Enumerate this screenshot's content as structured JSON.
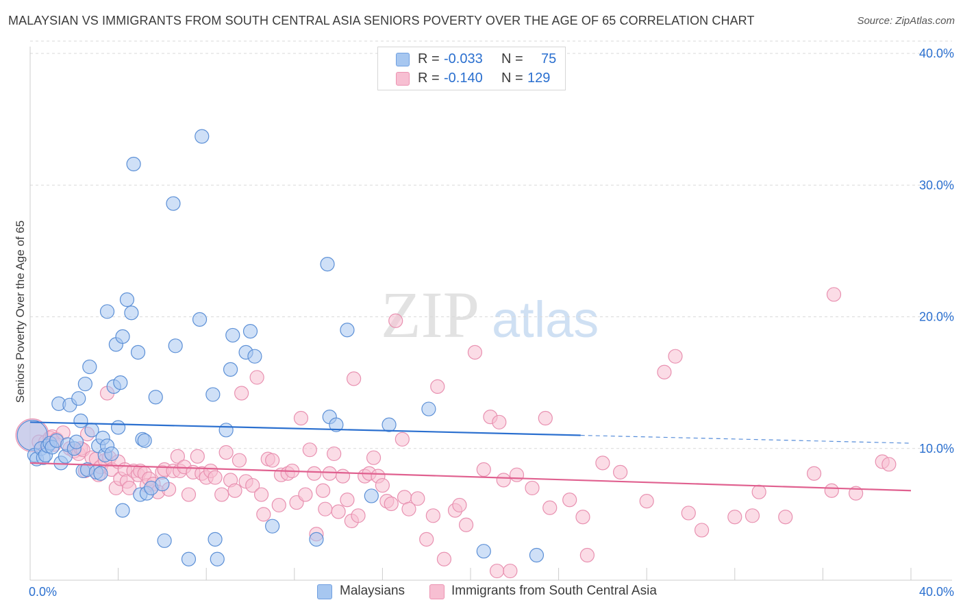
{
  "title": "MALAYSIAN VS IMMIGRANTS FROM SOUTH CENTRAL ASIA SENIORS POVERTY OVER THE AGE OF 65 CORRELATION CHART",
  "source": "Source: ZipAtlas.com",
  "watermark": {
    "zip": "ZIP",
    "atlas": "atlas"
  },
  "legend_top": {
    "rows": [
      {
        "r_label": "R =",
        "r_value": "-0.033",
        "n_label": "N =",
        "n_value": "75",
        "color": "#a7c7f0",
        "border": "#6f9fe0"
      },
      {
        "r_label": "R =",
        "r_value": "-0.140",
        "n_label": "N =",
        "n_value": "129",
        "color": "#f7bfd2",
        "border": "#ec92b1"
      }
    ]
  },
  "legend_bottom": {
    "items": [
      {
        "label": "Malaysians",
        "color": "#a7c7f0",
        "border": "#6f9fe0"
      },
      {
        "label": "Immigrants from South Central Asia",
        "color": "#f7bfd2",
        "border": "#ec92b1"
      }
    ]
  },
  "colors": {
    "blue": "#2a6fcf",
    "blue_point_fill": "#a7c7f0",
    "blue_point_stroke": "#5b8fd6",
    "pink": "#e0608f",
    "pink_point_fill": "#f7bfd2",
    "pink_point_stroke": "#e890b0",
    "grid": "#d9d9d9",
    "tick_text": "#2a6fcf"
  },
  "chart_data": {
    "type": "scatter",
    "xlabel": "",
    "ylabel": "Seniors Poverty Over the Age of 65",
    "xlim": [
      0,
      40
    ],
    "ylim": [
      0,
      40
    ],
    "x_tick_labels": [
      "0.0%",
      "40.0%"
    ],
    "y_ticks": [
      10,
      20,
      30,
      40
    ],
    "y_tick_labels": [
      "10.0%",
      "20.0%",
      "30.0%",
      "40.0%"
    ],
    "grid": true,
    "legend": "top-center",
    "series": [
      {
        "name": "Malaysians",
        "trend": {
          "x0": 0,
          "y0": 12.0,
          "x1": 25,
          "y1": 11.0,
          "dashed_to_x": 40,
          "dashed_to_y": 10.4
        },
        "points": [
          [
            0.1,
            11.0,
            22
          ],
          [
            0.2,
            9.5,
            10
          ],
          [
            0.3,
            9.2,
            10
          ],
          [
            0.5,
            10.0,
            10
          ],
          [
            0.6,
            9.3,
            10
          ],
          [
            0.7,
            9.5,
            10
          ],
          [
            0.8,
            10.2,
            10
          ],
          [
            0.9,
            10.4,
            10
          ],
          [
            1.0,
            10.1,
            10
          ],
          [
            1.2,
            10.6,
            10
          ],
          [
            1.3,
            13.4,
            10
          ],
          [
            1.4,
            8.9,
            10
          ],
          [
            1.6,
            9.4,
            10
          ],
          [
            1.7,
            10.3,
            10
          ],
          [
            1.8,
            13.3,
            10
          ],
          [
            2.0,
            10.0,
            10
          ],
          [
            2.1,
            10.5,
            10
          ],
          [
            2.2,
            13.8,
            10
          ],
          [
            2.3,
            12.1,
            10
          ],
          [
            2.4,
            8.3,
            10
          ],
          [
            2.5,
            14.9,
            10
          ],
          [
            2.6,
            8.4,
            10
          ],
          [
            2.7,
            16.2,
            10
          ],
          [
            2.8,
            11.4,
            10
          ],
          [
            3.0,
            8.2,
            10
          ],
          [
            3.1,
            10.2,
            10
          ],
          [
            3.2,
            8.1,
            10
          ],
          [
            3.3,
            10.8,
            10
          ],
          [
            3.4,
            9.5,
            10
          ],
          [
            3.5,
            10.2,
            10
          ],
          [
            3.5,
            20.4,
            10
          ],
          [
            3.7,
            9.6,
            10
          ],
          [
            3.8,
            14.7,
            10
          ],
          [
            3.9,
            17.9,
            10
          ],
          [
            4.0,
            11.6,
            10
          ],
          [
            4.1,
            15.0,
            10
          ],
          [
            4.2,
            18.5,
            10
          ],
          [
            4.2,
            5.3,
            10
          ],
          [
            4.4,
            21.3,
            10
          ],
          [
            4.6,
            20.3,
            10
          ],
          [
            4.7,
            31.6,
            10
          ],
          [
            4.9,
            17.3,
            10
          ],
          [
            5.0,
            6.5,
            10
          ],
          [
            5.1,
            10.7,
            10
          ],
          [
            5.2,
            10.6,
            10
          ],
          [
            5.3,
            6.6,
            10
          ],
          [
            5.5,
            7.0,
            10
          ],
          [
            5.7,
            13.9,
            10
          ],
          [
            6.0,
            7.3,
            10
          ],
          [
            6.1,
            3.0,
            10
          ],
          [
            6.5,
            28.6,
            10
          ],
          [
            6.6,
            17.8,
            10
          ],
          [
            7.2,
            1.6,
            10
          ],
          [
            7.7,
            19.8,
            10
          ],
          [
            7.8,
            33.7,
            10
          ],
          [
            8.3,
            14.1,
            10
          ],
          [
            8.4,
            3.1,
            10
          ],
          [
            8.5,
            1.6,
            10
          ],
          [
            8.9,
            11.4,
            10
          ],
          [
            9.1,
            16.0,
            10
          ],
          [
            9.2,
            18.6,
            10
          ],
          [
            9.8,
            17.3,
            10
          ],
          [
            10.0,
            18.9,
            10
          ],
          [
            10.2,
            17.0,
            10
          ],
          [
            11.0,
            4.1,
            10
          ],
          [
            13.0,
            3.1,
            10
          ],
          [
            13.5,
            24.0,
            10
          ],
          [
            13.6,
            12.4,
            10
          ],
          [
            13.9,
            11.8,
            10
          ],
          [
            14.4,
            19.0,
            10
          ],
          [
            15.5,
            6.4,
            10
          ],
          [
            16.3,
            11.8,
            10
          ],
          [
            18.1,
            13.0,
            10
          ],
          [
            20.6,
            2.2,
            10
          ],
          [
            23.0,
            1.9,
            10
          ]
        ]
      },
      {
        "name": "Immigrants from South Central Asia",
        "trend": {
          "x0": 0,
          "y0": 8.9,
          "x1": 40,
          "y1": 6.8
        },
        "points": [
          [
            0.1,
            11.0,
            24
          ],
          [
            0.4,
            10.5,
            10
          ],
          [
            0.7,
            10.5,
            10
          ],
          [
            0.9,
            10.8,
            10
          ],
          [
            1.0,
            10.9,
            10
          ],
          [
            1.1,
            10.3,
            10
          ],
          [
            1.2,
            10.7,
            10
          ],
          [
            1.5,
            11.2,
            10
          ],
          [
            1.8,
            10.0,
            10
          ],
          [
            2.0,
            9.8,
            10
          ],
          [
            2.2,
            9.6,
            10
          ],
          [
            2.3,
            10.0,
            10
          ],
          [
            2.4,
            9.9,
            10
          ],
          [
            2.5,
            8.3,
            10
          ],
          [
            2.6,
            11.1,
            10
          ],
          [
            2.8,
            9.3,
            10
          ],
          [
            3.0,
            9.2,
            10
          ],
          [
            3.1,
            8.0,
            10
          ],
          [
            3.2,
            8.6,
            10
          ],
          [
            3.4,
            9.1,
            10
          ],
          [
            3.5,
            14.2,
            10
          ],
          [
            3.6,
            9.3,
            10
          ],
          [
            3.7,
            8.4,
            10
          ],
          [
            3.9,
            7.0,
            10
          ],
          [
            4.0,
            9.0,
            10
          ],
          [
            4.1,
            7.7,
            10
          ],
          [
            4.3,
            8.4,
            10
          ],
          [
            4.4,
            7.5,
            10
          ],
          [
            4.5,
            7.0,
            10
          ],
          [
            4.7,
            8.3,
            10
          ],
          [
            4.9,
            8.0,
            10
          ],
          [
            5.0,
            8.3,
            10
          ],
          [
            5.2,
            8.1,
            10
          ],
          [
            5.3,
            7.2,
            10
          ],
          [
            5.4,
            7.7,
            10
          ],
          [
            5.6,
            7.3,
            10
          ],
          [
            5.8,
            6.7,
            10
          ],
          [
            6.0,
            8.2,
            10
          ],
          [
            6.1,
            8.4,
            10
          ],
          [
            6.3,
            6.9,
            10
          ],
          [
            6.5,
            8.3,
            10
          ],
          [
            6.7,
            9.4,
            10
          ],
          [
            6.8,
            8.3,
            10
          ],
          [
            7.0,
            8.6,
            10
          ],
          [
            7.2,
            6.5,
            10
          ],
          [
            7.4,
            8.2,
            10
          ],
          [
            7.6,
            9.4,
            10
          ],
          [
            7.8,
            8.1,
            10
          ],
          [
            8.0,
            7.8,
            10
          ],
          [
            8.2,
            8.3,
            10
          ],
          [
            8.4,
            7.8,
            10
          ],
          [
            8.7,
            6.5,
            10
          ],
          [
            8.9,
            9.7,
            10
          ],
          [
            9.1,
            7.6,
            10
          ],
          [
            9.3,
            6.8,
            10
          ],
          [
            9.5,
            9.1,
            10
          ],
          [
            9.6,
            14.2,
            10
          ],
          [
            9.8,
            7.5,
            10
          ],
          [
            10.1,
            7.2,
            10
          ],
          [
            10.3,
            15.4,
            10
          ],
          [
            10.5,
            6.5,
            10
          ],
          [
            10.6,
            5.0,
            10
          ],
          [
            10.8,
            9.2,
            10
          ],
          [
            11.0,
            9.1,
            10
          ],
          [
            11.3,
            5.7,
            10
          ],
          [
            11.4,
            8.0,
            10
          ],
          [
            11.7,
            8.1,
            10
          ],
          [
            11.9,
            8.3,
            10
          ],
          [
            12.1,
            5.9,
            10
          ],
          [
            12.3,
            12.3,
            10
          ],
          [
            12.5,
            6.5,
            10
          ],
          [
            12.7,
            9.9,
            10
          ],
          [
            12.9,
            8.1,
            10
          ],
          [
            13.0,
            3.5,
            10
          ],
          [
            13.3,
            6.8,
            10
          ],
          [
            13.4,
            5.4,
            10
          ],
          [
            13.6,
            8.1,
            10
          ],
          [
            13.8,
            9.6,
            10
          ],
          [
            14.0,
            5.2,
            10
          ],
          [
            14.2,
            7.9,
            10
          ],
          [
            14.4,
            6.1,
            10
          ],
          [
            14.6,
            4.5,
            10
          ],
          [
            14.7,
            15.3,
            10
          ],
          [
            14.9,
            4.9,
            10
          ],
          [
            15.2,
            7.9,
            10
          ],
          [
            15.4,
            8.1,
            10
          ],
          [
            15.6,
            9.3,
            10
          ],
          [
            15.8,
            7.9,
            10
          ],
          [
            16.0,
            7.2,
            10
          ],
          [
            16.2,
            6.0,
            10
          ],
          [
            16.4,
            5.8,
            10
          ],
          [
            16.6,
            19.7,
            10
          ],
          [
            16.9,
            10.7,
            10
          ],
          [
            17.0,
            6.3,
            10
          ],
          [
            17.2,
            5.4,
            10
          ],
          [
            17.6,
            6.2,
            10
          ],
          [
            18.0,
            3.1,
            10
          ],
          [
            18.3,
            4.9,
            10
          ],
          [
            18.5,
            14.7,
            10
          ],
          [
            18.8,
            1.6,
            10
          ],
          [
            19.3,
            5.3,
            10
          ],
          [
            19.5,
            5.7,
            10
          ],
          [
            19.8,
            4.2,
            10
          ],
          [
            20.2,
            17.3,
            10
          ],
          [
            20.6,
            8.4,
            10
          ],
          [
            20.9,
            12.4,
            10
          ],
          [
            21.2,
            0.7,
            10
          ],
          [
            21.3,
            12.0,
            10
          ],
          [
            21.5,
            7.6,
            10
          ],
          [
            21.8,
            0.7,
            10
          ],
          [
            22.1,
            8.0,
            10
          ],
          [
            22.8,
            7.0,
            10
          ],
          [
            23.4,
            12.3,
            10
          ],
          [
            23.6,
            5.5,
            10
          ],
          [
            24.5,
            6.1,
            10
          ],
          [
            25.1,
            4.8,
            10
          ],
          [
            25.3,
            1.9,
            10
          ],
          [
            26.0,
            8.9,
            10
          ],
          [
            26.8,
            8.2,
            10
          ],
          [
            28.0,
            6.0,
            10
          ],
          [
            28.8,
            15.8,
            10
          ],
          [
            29.3,
            17.0,
            10
          ],
          [
            29.9,
            5.1,
            10
          ],
          [
            30.5,
            3.8,
            10
          ],
          [
            32.0,
            4.8,
            10
          ],
          [
            32.8,
            4.9,
            10
          ],
          [
            33.1,
            6.7,
            10
          ],
          [
            34.3,
            4.8,
            10
          ],
          [
            35.6,
            8.1,
            10
          ],
          [
            36.4,
            6.8,
            10
          ],
          [
            36.5,
            21.7,
            10
          ],
          [
            37.5,
            6.6,
            10
          ],
          [
            38.7,
            9.0,
            10
          ],
          [
            39.0,
            8.8,
            10
          ]
        ]
      }
    ]
  }
}
